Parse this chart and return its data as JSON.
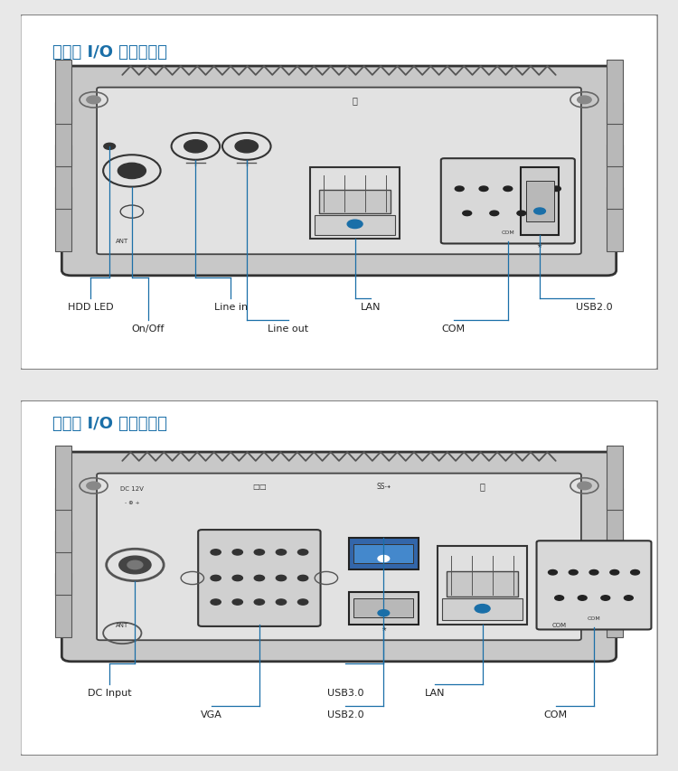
{
  "bg_color": "#e8e8e8",
  "panel_bg": "#ffffff",
  "border_color": "#444444",
  "device_fill": "#d0d0d0",
  "inner_fill": "#e0e0e0",
  "line_color": "#1a6fa8",
  "label_color": "#222222",
  "title_color": "#1a6fa8",
  "front_title": "前面板 I/O 扮展布局图",
  "rear_title": "后面板 I/O 扮展布局图",
  "front_labels_row1": [
    "HDD LED",
    "Line in",
    "LAN",
    "USB2.0"
  ],
  "front_labels_row2": [
    "On/Off",
    "Line out",
    "COM"
  ],
  "rear_labels_row1": [
    "DC Input",
    "USB3.0",
    "LAN"
  ],
  "rear_labels_row2": [
    "VGA",
    "USB2.0",
    "COM"
  ],
  "fin_color": "#b8b8b8",
  "shell_color": "#c8c8c8",
  "zigzag_color": "#666666",
  "screw_color": "#888888",
  "port_outline": "#333333",
  "com_fill": "#d8d8d8",
  "lan_fill": "#e8e8e8",
  "usb_fill": "#cccccc",
  "usb3_fill": "#3366aa",
  "font_size_title": 13,
  "font_size_label": 8,
  "font_size_small": 5.5
}
